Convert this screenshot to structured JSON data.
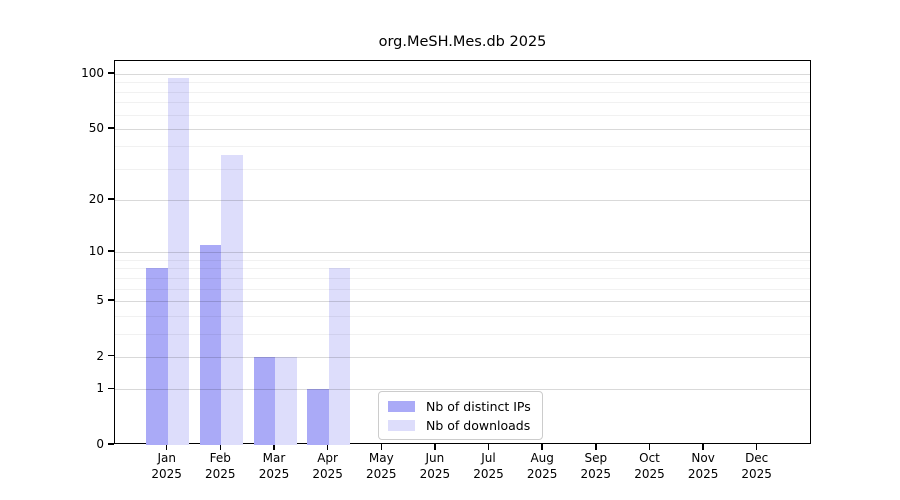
{
  "chart_data": {
    "type": "bar",
    "title": "org.MeSH.Mes.db 2025",
    "categories": [
      "Jan",
      "Feb",
      "Mar",
      "Apr",
      "May",
      "Jun",
      "Jul",
      "Aug",
      "Sep",
      "Oct",
      "Nov",
      "Dec"
    ],
    "category_sublabel": "2025",
    "series": [
      {
        "name": "Nb of distinct IPs",
        "color": "#AAAAF7",
        "values": [
          8,
          11,
          2,
          1,
          0,
          0,
          0,
          0,
          0,
          0,
          0,
          0
        ]
      },
      {
        "name": "Nb of downloads",
        "color": "#DDDDFB",
        "values": [
          95,
          36,
          2,
          8,
          0,
          0,
          0,
          0,
          0,
          0,
          0,
          0
        ]
      }
    ],
    "yscale": "log1p",
    "ylim": [
      0,
      117.6
    ],
    "yticks": [
      0,
      1,
      2,
      5,
      10,
      20,
      50,
      100
    ],
    "minor_yticks": [
      3,
      4,
      6,
      7,
      8,
      9,
      30,
      40,
      60,
      70,
      80,
      90
    ],
    "grid": "horizontal",
    "legend_position": "bottom-center-inside"
  }
}
